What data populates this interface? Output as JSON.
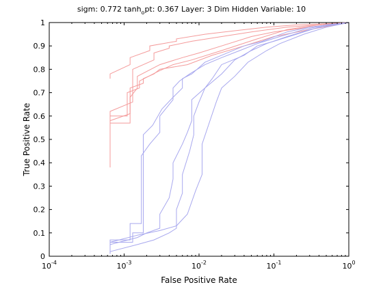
{
  "chart_data": {
    "type": "line",
    "title_parts": {
      "prefix": "sigm: 0.772  tanh",
      "subscript": "o",
      "suffix": "pt: 0.367 Layer: 3  Dim Hidden Variable: 10"
    },
    "xlabel": "False Positive Rate",
    "ylabel": "True Positive Rate",
    "x_scale": "log",
    "xlim": [
      0.0001,
      1
    ],
    "ylim": [
      0,
      1
    ],
    "grid": false,
    "legend": "none",
    "x_ticks": [
      {
        "base": "10",
        "exp": "-4",
        "value": 0.0001
      },
      {
        "base": "10",
        "exp": "-3",
        "value": 0.001
      },
      {
        "base": "10",
        "exp": "-2",
        "value": 0.01
      },
      {
        "base": "10",
        "exp": "-1",
        "value": 0.1
      },
      {
        "base": "10",
        "exp": "0",
        "value": 1
      }
    ],
    "y_ticks": [
      "0",
      "0.1",
      "0.2",
      "0.3",
      "0.4",
      "0.5",
      "0.6",
      "0.7",
      "0.8",
      "0.9",
      "1"
    ],
    "colors": {
      "red": "#f49a9a",
      "blue": "#a7a7ee",
      "axis": "#000000"
    },
    "series": [
      {
        "color": "red",
        "points": [
          [
            0.00065,
            0.76
          ],
          [
            0.00065,
            0.78
          ],
          [
            0.0012,
            0.82
          ],
          [
            0.0012,
            0.85
          ],
          [
            0.0022,
            0.88
          ],
          [
            0.0022,
            0.9
          ],
          [
            0.005,
            0.92
          ],
          [
            0.005,
            0.93
          ],
          [
            0.012,
            0.95
          ],
          [
            0.03,
            0.965
          ],
          [
            0.08,
            0.98
          ],
          [
            0.2,
            0.99
          ],
          [
            0.5,
            0.995
          ],
          [
            1,
            1
          ]
        ]
      },
      {
        "color": "red",
        "points": [
          [
            0.00065,
            0.45
          ],
          [
            0.00065,
            0.62
          ],
          [
            0.0013,
            0.66
          ],
          [
            0.0013,
            0.8
          ],
          [
            0.0025,
            0.84
          ],
          [
            0.0025,
            0.87
          ],
          [
            0.004,
            0.89
          ],
          [
            0.004,
            0.9
          ],
          [
            0.008,
            0.92
          ],
          [
            0.02,
            0.94
          ],
          [
            0.05,
            0.96
          ],
          [
            0.15,
            0.98
          ],
          [
            0.4,
            0.99
          ],
          [
            1,
            1
          ]
        ]
      },
      {
        "color": "red",
        "points": [
          [
            0.00065,
            0.42
          ],
          [
            0.00065,
            0.58
          ],
          [
            0.0012,
            0.61
          ],
          [
            0.0012,
            0.68
          ],
          [
            0.0015,
            0.72
          ],
          [
            0.0015,
            0.77
          ],
          [
            0.003,
            0.82
          ],
          [
            0.006,
            0.85
          ],
          [
            0.01,
            0.87
          ],
          [
            0.02,
            0.9
          ],
          [
            0.05,
            0.94
          ],
          [
            0.1,
            0.96
          ],
          [
            0.3,
            0.98
          ],
          [
            1,
            1
          ]
        ]
      },
      {
        "color": "red",
        "points": [
          [
            0.00065,
            0.38
          ],
          [
            0.00065,
            0.57
          ],
          [
            0.0012,
            0.57
          ],
          [
            0.0012,
            0.72
          ],
          [
            0.0018,
            0.74
          ],
          [
            0.0018,
            0.76
          ],
          [
            0.0025,
            0.78
          ],
          [
            0.003,
            0.8
          ],
          [
            0.007,
            0.82
          ],
          [
            0.015,
            0.86
          ],
          [
            0.04,
            0.9
          ],
          [
            0.1,
            0.94
          ],
          [
            0.3,
            0.97
          ],
          [
            1,
            1
          ]
        ]
      },
      {
        "color": "red",
        "points": [
          [
            0.00065,
            0.43
          ],
          [
            0.00065,
            0.6
          ],
          [
            0.0011,
            0.6
          ],
          [
            0.0011,
            0.7
          ],
          [
            0.0016,
            0.72
          ],
          [
            0.0016,
            0.75
          ],
          [
            0.0028,
            0.79
          ],
          [
            0.0045,
            0.82
          ],
          [
            0.008,
            0.84
          ],
          [
            0.02,
            0.88
          ],
          [
            0.06,
            0.93
          ],
          [
            0.15,
            0.97
          ],
          [
            0.4,
            0.99
          ],
          [
            1,
            1
          ]
        ]
      },
      {
        "color": "blue",
        "points": [
          [
            0.00065,
            0.03
          ],
          [
            0.00065,
            0.07
          ],
          [
            0.0012,
            0.07
          ],
          [
            0.0012,
            0.14
          ],
          [
            0.0017,
            0.14
          ],
          [
            0.0017,
            0.43
          ],
          [
            0.0022,
            0.48
          ],
          [
            0.003,
            0.53
          ],
          [
            0.003,
            0.6
          ],
          [
            0.0045,
            0.67
          ],
          [
            0.0045,
            0.72
          ],
          [
            0.0055,
            0.75
          ],
          [
            0.0075,
            0.78
          ],
          [
            0.012,
            0.82
          ],
          [
            0.02,
            0.85
          ],
          [
            0.035,
            0.88
          ],
          [
            0.06,
            0.91
          ],
          [
            0.12,
            0.94
          ],
          [
            0.25,
            0.97
          ],
          [
            0.5,
            0.99
          ],
          [
            1,
            1
          ]
        ]
      },
      {
        "color": "blue",
        "points": [
          [
            0.00065,
            0.01
          ],
          [
            0.00065,
            0.06
          ],
          [
            0.0013,
            0.06
          ],
          [
            0.0013,
            0.1
          ],
          [
            0.0018,
            0.1
          ],
          [
            0.0018,
            0.52
          ],
          [
            0.0024,
            0.56
          ],
          [
            0.0032,
            0.63
          ],
          [
            0.0045,
            0.68
          ],
          [
            0.006,
            0.72
          ],
          [
            0.006,
            0.76
          ],
          [
            0.008,
            0.78
          ],
          [
            0.012,
            0.83
          ],
          [
            0.02,
            0.86
          ],
          [
            0.04,
            0.9
          ],
          [
            0.07,
            0.92
          ],
          [
            0.15,
            0.96
          ],
          [
            0.3,
            0.98
          ],
          [
            1,
            1
          ]
        ]
      },
      {
        "color": "blue",
        "points": [
          [
            0.00065,
            0.05
          ],
          [
            0.0015,
            0.08
          ],
          [
            0.002,
            0.1
          ],
          [
            0.003,
            0.12
          ],
          [
            0.003,
            0.18
          ],
          [
            0.004,
            0.25
          ],
          [
            0.0045,
            0.33
          ],
          [
            0.0045,
            0.4
          ],
          [
            0.006,
            0.48
          ],
          [
            0.007,
            0.53
          ],
          [
            0.008,
            0.58
          ],
          [
            0.008,
            0.67
          ],
          [
            0.012,
            0.72
          ],
          [
            0.015,
            0.76
          ],
          [
            0.02,
            0.82
          ],
          [
            0.04,
            0.86
          ],
          [
            0.06,
            0.9
          ],
          [
            0.1,
            0.92
          ],
          [
            0.2,
            0.95
          ],
          [
            0.4,
            0.98
          ],
          [
            1,
            1
          ]
        ]
      },
      {
        "color": "blue",
        "points": [
          [
            0.00065,
            0.02
          ],
          [
            0.0015,
            0.05
          ],
          [
            0.0025,
            0.07
          ],
          [
            0.004,
            0.1
          ],
          [
            0.005,
            0.12
          ],
          [
            0.005,
            0.2
          ],
          [
            0.006,
            0.27
          ],
          [
            0.006,
            0.35
          ],
          [
            0.0075,
            0.45
          ],
          [
            0.0085,
            0.52
          ],
          [
            0.0085,
            0.6
          ],
          [
            0.01,
            0.66
          ],
          [
            0.012,
            0.72
          ],
          [
            0.02,
            0.78
          ],
          [
            0.03,
            0.84
          ],
          [
            0.05,
            0.88
          ],
          [
            0.08,
            0.91
          ],
          [
            0.15,
            0.94
          ],
          [
            0.3,
            0.97
          ],
          [
            0.6,
            0.99
          ],
          [
            1,
            1
          ]
        ]
      },
      {
        "color": "blue",
        "points": [
          [
            0.00065,
            0.06
          ],
          [
            0.0015,
            0.09
          ],
          [
            0.003,
            0.11
          ],
          [
            0.005,
            0.13
          ],
          [
            0.007,
            0.18
          ],
          [
            0.009,
            0.28
          ],
          [
            0.011,
            0.35
          ],
          [
            0.011,
            0.48
          ],
          [
            0.014,
            0.58
          ],
          [
            0.017,
            0.66
          ],
          [
            0.02,
            0.72
          ],
          [
            0.03,
            0.77
          ],
          [
            0.045,
            0.83
          ],
          [
            0.08,
            0.88
          ],
          [
            0.12,
            0.91
          ],
          [
            0.25,
            0.95
          ],
          [
            0.5,
            0.98
          ],
          [
            1,
            1
          ]
        ]
      }
    ]
  }
}
